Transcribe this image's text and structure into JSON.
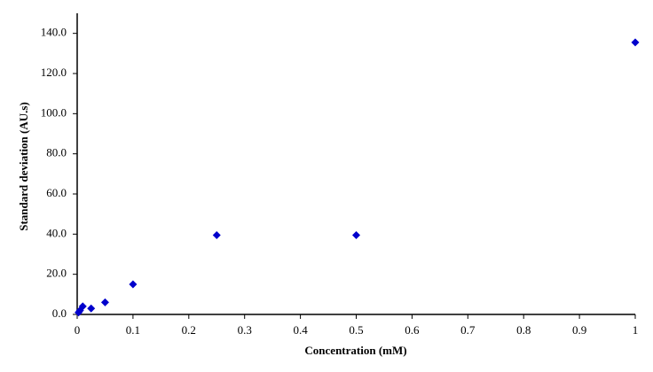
{
  "chart_data": {
    "type": "scatter",
    "x_label": "Concentration  (mM)",
    "y_label": "Standard  deviation  (AU.s)",
    "series": [
      {
        "color": "#0000cc",
        "x": [
          0.0025,
          0.005,
          0.01,
          0.025,
          0.05,
          0.1,
          0.25,
          0.5,
          1
        ],
        "values": [
          1.0,
          2.0,
          4.0,
          3.0,
          6.0,
          15.0,
          39.5,
          39.5,
          135.5
        ]
      }
    ],
    "xlim": [
      0,
      1
    ],
    "xticks": [
      0,
      0.1,
      0.2,
      0.3,
      0.4,
      0.5,
      0.6,
      0.7,
      0.8,
      0.9,
      1
    ],
    "ylim": [
      0,
      150
    ],
    "yticks": [
      {
        "value": 0,
        "label": "0.0"
      },
      {
        "value": 20,
        "label": "20.0"
      },
      {
        "value": 40,
        "label": "40.0"
      },
      {
        "value": 60,
        "label": "60.0"
      },
      {
        "value": 80,
        "label": "80.0"
      },
      {
        "value": 100,
        "label": "100.0"
      },
      {
        "value": 120,
        "label": "120.0"
      },
      {
        "value": 140,
        "label": "140.0"
      }
    ],
    "grid": false
  }
}
